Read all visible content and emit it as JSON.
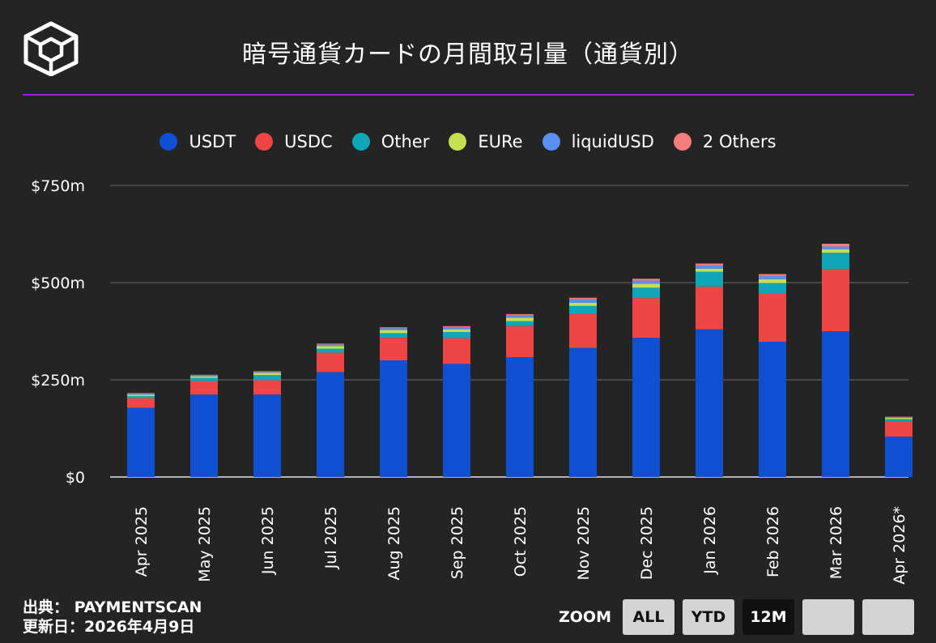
{
  "header": {
    "title": "暗号通貨カードの月間取引量（通貨別）",
    "logo_icon": "cube-logo-icon"
  },
  "colors": {
    "accent_rule": "#9b1fd6",
    "background": "#242424"
  },
  "chart_data": {
    "type": "bar",
    "stacked": true,
    "categories": [
      "Apr 2025",
      "May 2025",
      "Jun 2025",
      "Jul 2025",
      "Aug 2025",
      "Sep 2025",
      "Oct 2025",
      "Nov 2025",
      "Dec 2025",
      "Jan 2026",
      "Feb 2026",
      "Mar 2026",
      "Apr 2026*"
    ],
    "series": [
      {
        "name": "USDT",
        "color": "#0f4fd1",
        "values": [
          178,
          212,
          212,
          270,
          300,
          291,
          308,
          332,
          358,
          380,
          348,
          375,
          104
        ]
      },
      {
        "name": "USDC",
        "color": "#ef4545",
        "values": [
          25,
          35,
          37,
          50,
          58,
          66,
          80,
          88,
          102,
          110,
          125,
          160,
          40
        ]
      },
      {
        "name": "Other",
        "color": "#10a6b8",
        "values": [
          5,
          8,
          13,
          10,
          12,
          16,
          13,
          20,
          27,
          38,
          26,
          42,
          5
        ]
      },
      {
        "name": "EURe",
        "color": "#c5df55",
        "values": [
          4,
          4,
          6,
          7,
          8,
          7,
          9,
          8,
          10,
          8,
          10,
          9,
          3
        ]
      },
      {
        "name": "liquidUSD",
        "color": "#5b8ef0",
        "values": [
          3,
          3,
          2,
          4,
          5,
          5,
          6,
          9,
          8,
          8,
          8,
          7,
          2
        ]
      },
      {
        "name": "2 Others",
        "color": "#f57d7d",
        "values": [
          1,
          1,
          2,
          2,
          2,
          3,
          3,
          4,
          5,
          5,
          5,
          7,
          1
        ]
      }
    ],
    "y_ticks": [
      {
        "value": 0,
        "label": "$0"
      },
      {
        "value": 250,
        "label": "$250m"
      },
      {
        "value": 500,
        "label": "$500m"
      },
      {
        "value": 750,
        "label": "$750m"
      }
    ],
    "ylim": [
      0,
      750
    ],
    "grid": true,
    "legend_position": "top-center"
  },
  "footer": {
    "source": "出典： PAYMENTSCAN",
    "updated": "更新日：2026年4月9日"
  },
  "zoom": {
    "label": "ZOOM",
    "buttons": [
      "ALL",
      "YTD",
      "12M",
      "",
      ""
    ],
    "active": "12M"
  }
}
